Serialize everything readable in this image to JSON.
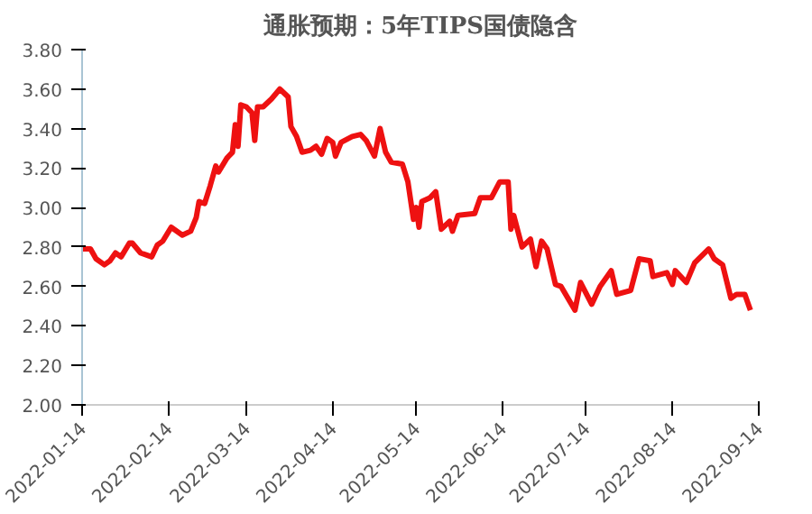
{
  "chart_data": {
    "type": "line",
    "title": "通胀预期：5年TIPS国债隐含",
    "x": [
      "2022-01-14",
      "2022-01-17",
      "2022-01-19",
      "2022-01-22",
      "2022-01-24",
      "2022-01-26",
      "2022-01-28",
      "2022-01-31",
      "2022-02-01",
      "2022-02-04",
      "2022-02-06",
      "2022-02-08",
      "2022-02-10",
      "2022-02-12",
      "2022-02-15",
      "2022-02-19",
      "2022-02-22",
      "2022-02-24",
      "2022-02-25",
      "2022-02-27",
      "2022-03-01",
      "2022-03-03",
      "2022-03-04",
      "2022-03-07",
      "2022-03-09",
      "2022-03-10",
      "2022-03-11",
      "2022-03-12",
      "2022-03-14",
      "2022-03-16",
      "2022-03-17",
      "2022-03-18",
      "2022-03-20",
      "2022-03-23",
      "2022-03-26",
      "2022-03-29",
      "2022-03-30",
      "2022-04-01",
      "2022-04-03",
      "2022-04-06",
      "2022-04-08",
      "2022-04-10",
      "2022-04-12",
      "2022-04-14",
      "2022-04-15",
      "2022-04-17",
      "2022-04-21",
      "2022-04-24",
      "2022-04-26",
      "2022-04-29",
      "2022-05-01",
      "2022-05-03",
      "2022-05-05",
      "2022-05-09",
      "2022-05-11",
      "2022-05-13",
      "2022-05-14",
      "2022-05-15",
      "2022-05-16",
      "2022-05-19",
      "2022-05-21",
      "2022-05-23",
      "2022-05-26",
      "2022-05-27",
      "2022-05-29",
      "2022-06-04",
      "2022-06-06",
      "2022-06-10",
      "2022-06-13",
      "2022-06-16",
      "2022-06-17",
      "2022-06-18",
      "2022-06-21",
      "2022-06-24",
      "2022-06-26",
      "2022-06-28",
      "2022-06-30",
      "2022-07-03",
      "2022-07-05",
      "2022-07-10",
      "2022-07-12",
      "2022-07-16",
      "2022-07-19",
      "2022-07-23",
      "2022-07-25",
      "2022-07-30",
      "2022-08-02",
      "2022-08-06",
      "2022-08-07",
      "2022-08-12",
      "2022-08-14",
      "2022-08-15",
      "2022-08-19",
      "2022-08-22",
      "2022-08-27",
      "2022-08-29",
      "2022-09-01",
      "2022-09-04",
      "2022-09-06",
      "2022-09-09",
      "2022-09-11"
    ],
    "series": [
      {
        "color": "#ee1111",
        "values": [
          2.79,
          2.79,
          2.74,
          2.71,
          2.73,
          2.77,
          2.75,
          2.82,
          2.82,
          2.77,
          2.76,
          2.75,
          2.81,
          2.83,
          2.9,
          2.86,
          2.88,
          2.95,
          3.03,
          3.02,
          3.11,
          3.21,
          3.18,
          3.25,
          3.28,
          3.42,
          3.31,
          3.52,
          3.51,
          3.48,
          3.34,
          3.51,
          3.51,
          3.55,
          3.6,
          3.56,
          3.41,
          3.36,
          3.28,
          3.29,
          3.31,
          3.27,
          3.35,
          3.33,
          3.26,
          3.33,
          3.36,
          3.37,
          3.34,
          3.26,
          3.4,
          3.28,
          3.23,
          3.22,
          3.13,
          2.94,
          3.0,
          2.9,
          3.03,
          3.05,
          3.08,
          2.89,
          2.93,
          2.88,
          2.96,
          2.97,
          3.05,
          3.05,
          3.13,
          3.13,
          2.89,
          2.96,
          2.8,
          2.84,
          2.7,
          2.83,
          2.79,
          2.61,
          2.6,
          2.48,
          2.62,
          2.51,
          2.6,
          2.68,
          2.56,
          2.58,
          2.74,
          2.73,
          2.65,
          2.67,
          2.61,
          2.68,
          2.62,
          2.72,
          2.79,
          2.74,
          2.71,
          2.54,
          2.56,
          2.56,
          2.48
        ]
      }
    ],
    "xlim": [
      "2022-01-14",
      "2022-09-14"
    ],
    "xticks": [
      "2022-01-14",
      "2022-02-14",
      "2022-03-14",
      "2022-04-14",
      "2022-05-14",
      "2022-06-14",
      "2022-07-14",
      "2022-08-14",
      "2022-09-14"
    ],
    "ylim": [
      2.0,
      3.8
    ],
    "yticks": [
      {
        "value": 2.0,
        "label": "2.00"
      },
      {
        "value": 2.2,
        "label": "2.20"
      },
      {
        "value": 2.4,
        "label": "2.40"
      },
      {
        "value": 2.6,
        "label": "2.60"
      },
      {
        "value": 2.8,
        "label": "2.80"
      },
      {
        "value": 3.0,
        "label": "3.00"
      },
      {
        "value": 3.2,
        "label": "3.20"
      },
      {
        "value": 3.4,
        "label": "3.40"
      },
      {
        "value": 3.6,
        "label": "3.60"
      },
      {
        "value": 3.8,
        "label": "3.80"
      }
    ],
    "grid": false,
    "marker": "none",
    "line_style": "solid"
  }
}
